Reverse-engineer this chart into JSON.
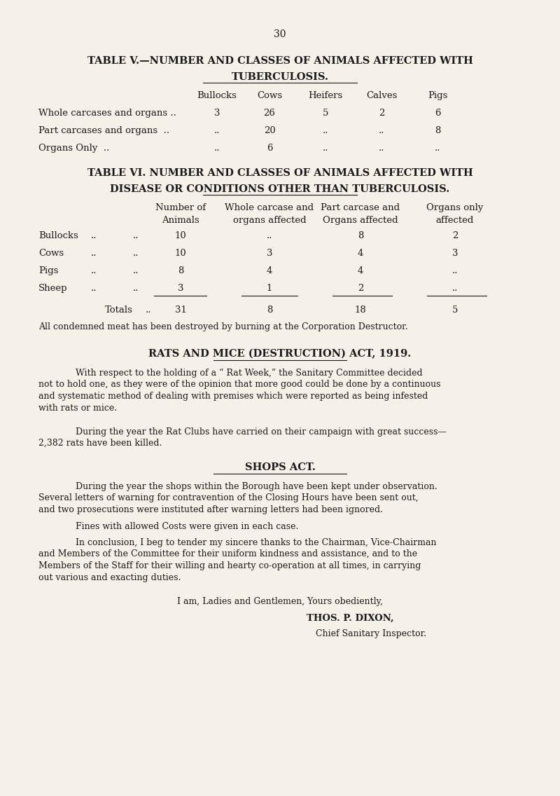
{
  "bg_color": "#f5f0e8",
  "text_color": "#1a1a1a",
  "page_number": "30",
  "table5_title1": "TABLE V.—NUMBER AND CLASSES OF ANIMALS AFFECTED WITH",
  "table5_title2": "TUBERCULOSIS.",
  "table5_headers": [
    "Bullocks",
    "Cows",
    "Heifers",
    "Calves",
    "Pigs"
  ],
  "table5_row1_label": "Whole carcases and organs ..",
  "table5_row1_vals": [
    "3",
    "26",
    "5",
    "2",
    "6"
  ],
  "table5_row2_label": "Part carcases and organs  ..",
  "table5_row2_vals": [
    "..",
    "20",
    "..",
    "..",
    "8"
  ],
  "table5_row3_label": "Organs Only  ..",
  "table5_row3_vals": [
    "..",
    "6",
    "..",
    "..",
    ".."
  ],
  "table6_title1": "TABLE VI. NUMBER AND CLASSES OF ANIMALS AFFECTED WITH",
  "table6_title2": "DISEASE OR CONDITIONS OTHER THAN TUBERCULOSIS.",
  "table6_h1": [
    "Number of",
    "Whole carcase and",
    "Part carcase and",
    "Organs only"
  ],
  "table6_h2": [
    "Animals",
    "organs affected",
    "Organs affected",
    "affected"
  ],
  "table6_rows": [
    [
      "Bullocks",
      "..",
      "..",
      "10",
      "..",
      "8",
      "2"
    ],
    [
      "Cows",
      "..",
      "..",
      "10",
      "3",
      "4",
      "3"
    ],
    [
      "Pigs",
      "..",
      "..",
      "8",
      "4",
      "4",
      ".."
    ],
    [
      "Sheep",
      "..",
      "..",
      "3",
      "1",
      "2",
      ".."
    ]
  ],
  "totals_vals": [
    "31",
    "8",
    "18",
    "5"
  ],
  "condemned_note": "All condemned meat has been destroyed by burning at the Corporation Destructor.",
  "rats_heading": "RATS AND MICE (DESTRUCTION) ACT, 1919.",
  "rats_para1_indent": "With respect to the holding of a “ Rat Week,” the Sanitary Committee decided",
  "rats_para1_cont": [
    "not to hold one, as they were of the opinion that more good could be done by a continuous",
    "and systematic method of dealing with premises which were reported as being infested",
    "with rats or mice."
  ],
  "rats_para2_indent": "During the year the Rat Clubs have carried on their campaign with great success—",
  "rats_para2_cont": [
    "2,382 rats have been killed."
  ],
  "shops_heading": "SHOPS ACT.",
  "shops_para1_indent": "During the year the shops within the Borough have been kept under observation.",
  "shops_para1_cont": [
    "Several letters of warning for contravention of the Closing Hours have been sent out,",
    "and two prosecutions were instituted after warning letters had been ignored."
  ],
  "shops_para2_indent": "Fines with allowed Costs were given in each case.",
  "shops_para3_indent": "In conclusion, I beg to tender my sincere thanks to the Chairman, Vice-Chairman",
  "shops_para3_cont": [
    "and Members of the Committee for their uniform kindness and assistance, and to the",
    "Members of the Staff for their willing and hearty co-operation at all times, in carrying",
    "out various and exacting duties."
  ],
  "closing1": "I am, Ladies and Gentlemen, Yours obediently,",
  "closing2": "THOS. P. DIXON,",
  "closing3": "Chief Sanitary Inspector."
}
